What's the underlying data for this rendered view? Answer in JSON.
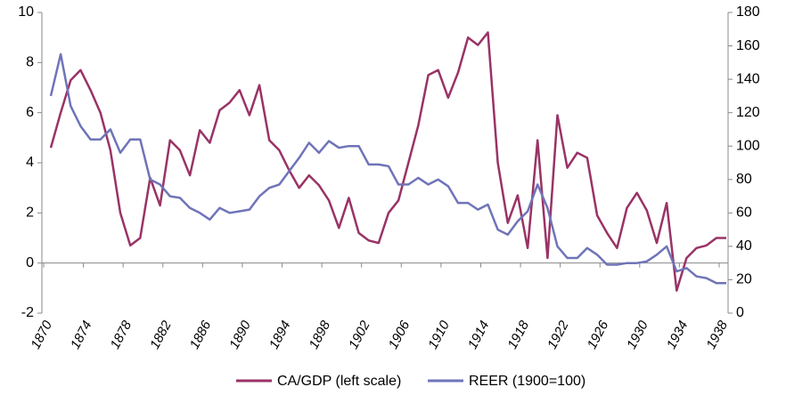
{
  "chart_data": {
    "type": "line",
    "x": [
      1870,
      1871,
      1872,
      1873,
      1874,
      1875,
      1876,
      1877,
      1878,
      1879,
      1880,
      1881,
      1882,
      1883,
      1884,
      1885,
      1886,
      1887,
      1888,
      1889,
      1890,
      1891,
      1892,
      1893,
      1894,
      1895,
      1896,
      1897,
      1898,
      1899,
      1900,
      1901,
      1902,
      1903,
      1904,
      1905,
      1906,
      1907,
      1908,
      1909,
      1910,
      1911,
      1912,
      1913,
      1914,
      1915,
      1916,
      1917,
      1918,
      1919,
      1920,
      1921,
      1922,
      1923,
      1924,
      1925,
      1926,
      1927,
      1928,
      1929,
      1930,
      1931,
      1932,
      1933,
      1934,
      1935,
      1936,
      1937,
      1938
    ],
    "series": [
      {
        "name": "CA/GDP (left scale)",
        "color": "#993366",
        "axis": "y",
        "values": [
          4.6,
          6.0,
          7.3,
          7.7,
          6.9,
          6.0,
          4.5,
          2.0,
          0.7,
          1.0,
          3.4,
          2.3,
          4.9,
          4.5,
          3.5,
          5.3,
          4.8,
          6.1,
          6.4,
          6.9,
          5.9,
          7.1,
          4.9,
          4.5,
          3.7,
          3.0,
          3.5,
          3.1,
          2.5,
          1.4,
          2.6,
          1.2,
          0.9,
          0.8,
          2.0,
          2.5,
          4.0,
          5.5,
          7.5,
          7.7,
          6.6,
          7.6,
          9.0,
          8.7,
          9.2,
          4.0,
          1.6,
          2.7,
          0.6,
          4.9,
          0.2,
          5.9,
          3.8,
          4.4,
          4.2,
          1.9,
          1.2,
          0.6,
          2.2,
          2.8,
          2.1,
          0.8,
          2.4,
          -1.1,
          0.2,
          0.6,
          0.7,
          1.0,
          1.0
        ]
      },
      {
        "name": "REER (1900=100)",
        "color": "#6f74b8",
        "axis": "y2",
        "values": [
          130,
          155,
          124,
          112,
          104,
          104,
          110,
          96,
          104,
          104,
          80,
          77,
          70,
          69,
          63,
          60,
          56,
          63,
          60,
          61,
          62,
          70,
          75,
          77,
          85,
          93,
          102,
          96,
          103,
          99,
          100,
          100,
          89,
          89,
          88,
          77,
          77,
          81,
          77,
          80,
          76,
          66,
          66,
          62,
          65,
          50,
          47,
          55,
          61,
          77,
          63,
          40,
          33,
          33,
          39,
          35,
          29,
          29,
          30,
          30,
          31,
          35,
          40,
          25,
          27,
          22,
          21,
          18,
          18
        ]
      }
    ],
    "xlim": [
      1870,
      1938
    ],
    "xticks": [
      1870,
      1874,
      1878,
      1882,
      1886,
      1890,
      1894,
      1898,
      1902,
      1906,
      1910,
      1914,
      1918,
      1922,
      1926,
      1930,
      1934,
      1938
    ],
    "ylim": [
      -2,
      10
    ],
    "yticks": [
      -2,
      0,
      2,
      4,
      6,
      8,
      10
    ],
    "y2lim": [
      0,
      180
    ],
    "y2ticks": [
      0,
      20,
      40,
      60,
      80,
      100,
      120,
      140,
      160,
      180
    ],
    "grid": false,
    "legend": "bottom"
  }
}
